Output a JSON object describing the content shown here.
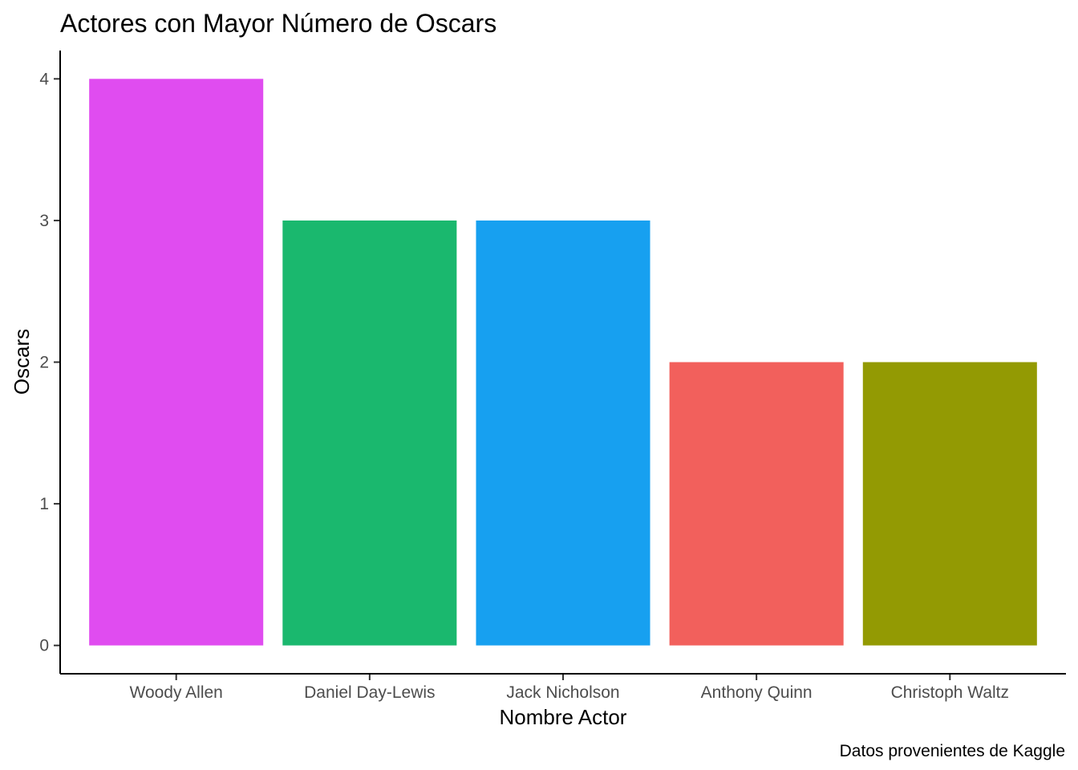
{
  "chart_data": {
    "type": "bar",
    "title": "Actores con Mayor Número de Oscars",
    "xlabel": "Nombre Actor",
    "ylabel": "Oscars",
    "caption": "Datos provenientes de Kaggle",
    "categories": [
      "Woody Allen",
      "Daniel Day-Lewis",
      "Jack Nicholson",
      "Anthony Quinn",
      "Christoph Waltz"
    ],
    "values": [
      4,
      3,
      3,
      2,
      2
    ],
    "colors": [
      "#E04CF0",
      "#1AB86E",
      "#17A0F0",
      "#F2605C",
      "#939A03"
    ],
    "yticks": [
      0,
      1,
      2,
      3,
      4
    ],
    "ylim": [
      -0.2,
      4.2
    ],
    "grid": false,
    "legend": "none"
  }
}
